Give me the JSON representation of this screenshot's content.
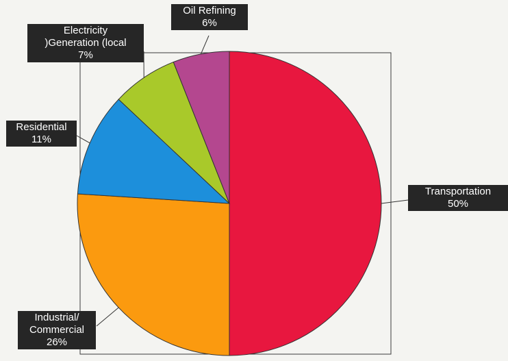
{
  "chart_data": {
    "type": "pie",
    "slices": [
      {
        "label": "Transportation",
        "value": 50,
        "value_label": "50%",
        "color": "#e8173f"
      },
      {
        "label": "Industrial/ Commercial",
        "label_lines": [
          "Industrial/",
          "Commercial"
        ],
        "value": 26,
        "value_label": "26%",
        "color": "#fb9a0f"
      },
      {
        "label": "Residential",
        "value": 11,
        "value_label": "11%",
        "color": "#1d8fdb"
      },
      {
        "label": ")Generation (local Electricity",
        "label_lines": [
          "Electricity",
          ")Generation (local"
        ],
        "value": 7,
        "value_label": "7%",
        "color": "#a9c92a"
      },
      {
        "label": "Oil Refining",
        "value": 6,
        "value_label": "6%",
        "color": "#b4478f"
      }
    ],
    "start_angle_deg": 0,
    "direction": "clockwise",
    "legend": "none",
    "slice_edge_color": "#333333"
  }
}
